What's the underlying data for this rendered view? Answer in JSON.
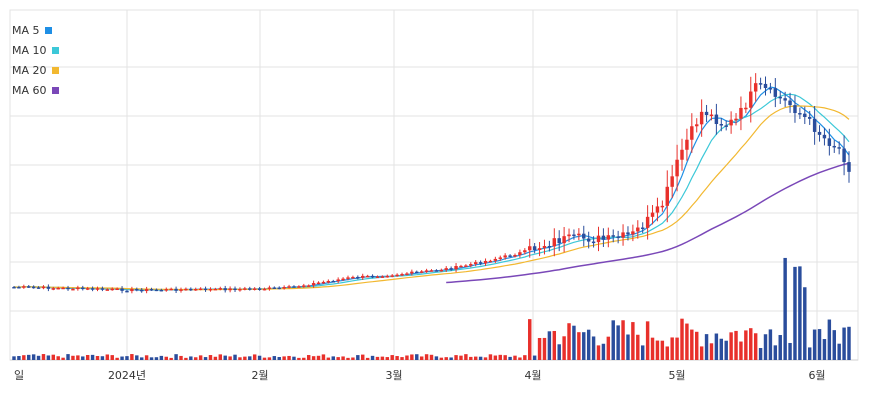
{
  "chart_data": {
    "type": "candlestick",
    "legend": [
      {
        "name": "MA 5",
        "color": "#1f8fe5"
      },
      {
        "name": "MA 10",
        "color": "#3cc8d8"
      },
      {
        "name": "MA 20",
        "color": "#f2b830"
      },
      {
        "name": "MA 60",
        "color": "#7a48b8"
      }
    ],
    "x_labels": [
      "일",
      "2024년",
      "2월",
      "3월",
      "4월",
      "5월",
      "6월"
    ],
    "colors": {
      "up": "#e8302b",
      "down": "#2a4d9c",
      "grid": "#e3e3e3"
    },
    "grid": true
  }
}
